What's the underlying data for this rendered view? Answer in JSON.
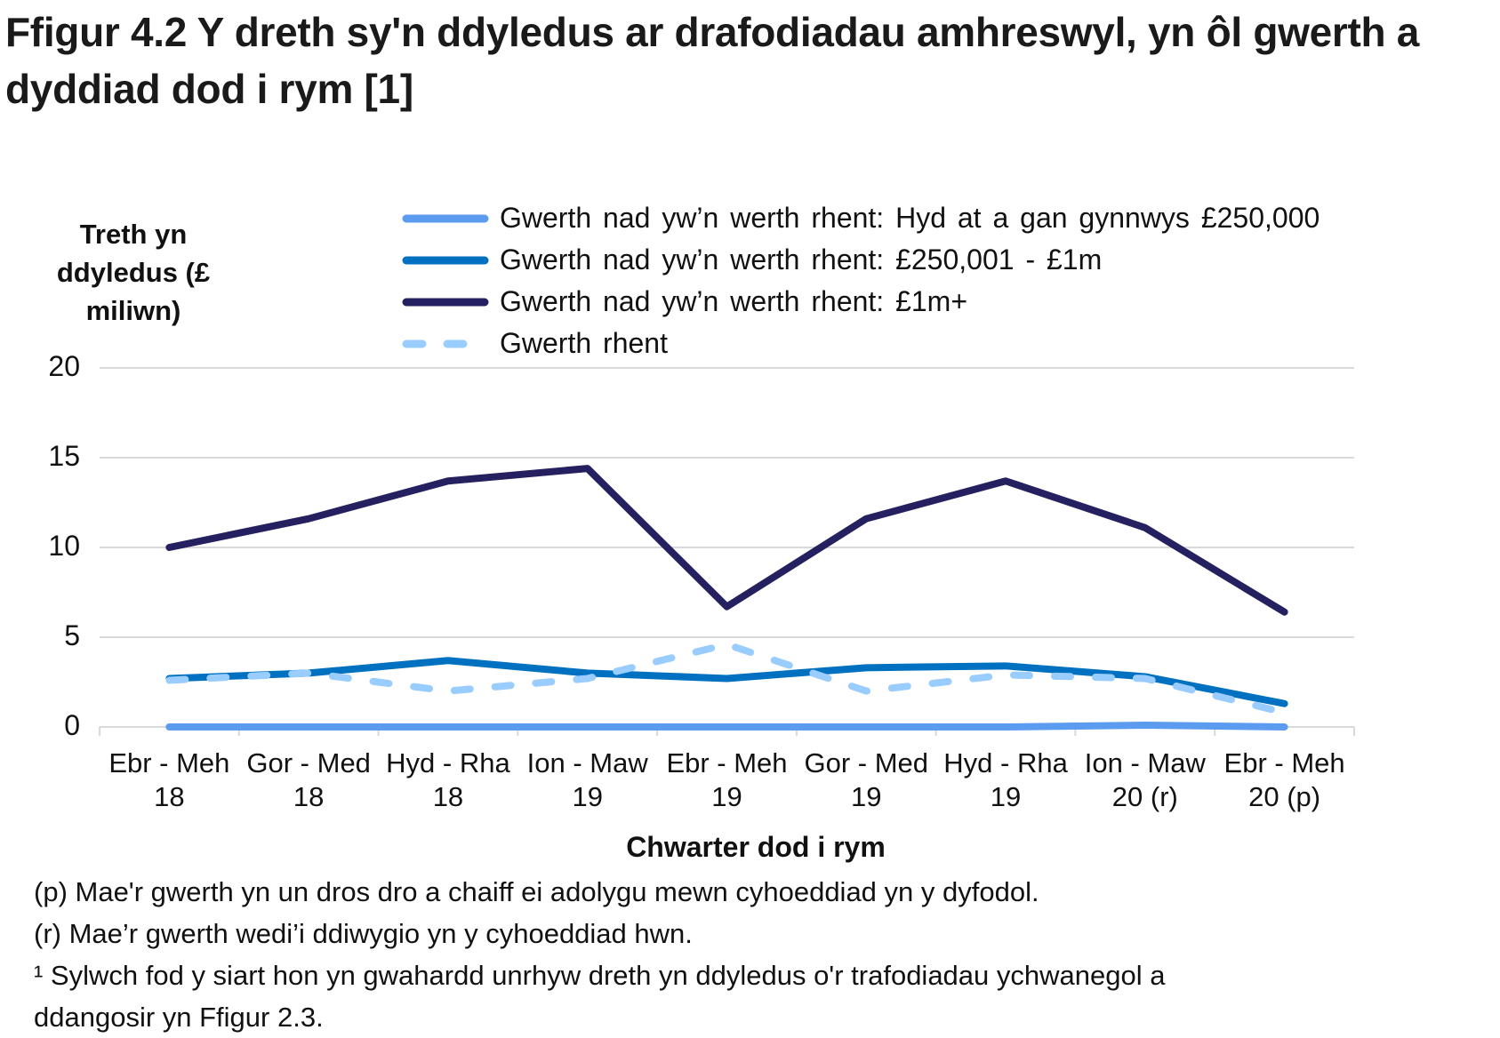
{
  "title": "Ffigur 4.2  Y dreth sy'n ddyledus ar drafodiadau amhreswyl, yn ôl gwerth a dyddiad dod i rym [1]",
  "y_axis_title": "Treth yn ddyledus (£ miliwn)",
  "x_axis_title": "Chwarter dod i rym",
  "y_ticks": [
    "0",
    "5",
    "10",
    "15",
    "20"
  ],
  "x_ticks": [
    {
      "line1": "Ebr - Meh",
      "line2": "18"
    },
    {
      "line1": "Gor - Med",
      "line2": "18"
    },
    {
      "line1": "Hyd - Rha",
      "line2": "18"
    },
    {
      "line1": "Ion - Maw",
      "line2": "19"
    },
    {
      "line1": "Ebr - Meh",
      "line2": "19"
    },
    {
      "line1": "Gor - Med",
      "line2": "19"
    },
    {
      "line1": "Hyd - Rha",
      "line2": "19"
    },
    {
      "line1": "Ion - Maw",
      "line2": "20 (r)"
    },
    {
      "line1": "Ebr - Meh",
      "line2": "20 (p)"
    }
  ],
  "legend": [
    {
      "label": "Gwerth nad yw’n werth rhent: Hyd at a gan gynnwys £250,000",
      "color": "#5b9bf0",
      "dashed": false
    },
    {
      "label": "Gwerth nad yw’n werth rhent: £250,001 - £1m",
      "color": "#0070c0",
      "dashed": false
    },
    {
      "label": "Gwerth nad yw’n werth rhent: £1m+",
      "color": "#252060",
      "dashed": false
    },
    {
      "label": "Gwerth rhent",
      "color": "#99ccff",
      "dashed": true
    }
  ],
  "footnotes": [
    "(p) Mae'r gwerth yn un dros dro a chaiff ei adolygu mewn cyhoeddiad yn y dyfodol.",
    "(r) Mae’r gwerth wedi’i ddiwygio yn y cyhoeddiad hwn.",
    "¹ Sylwch fod y siart hon yn gwahardd  unrhyw dreth yn ddyledus o'r trafodiadau  ychwanegol a",
    "ddangosir yn Ffigur 2.3."
  ],
  "chart_data": {
    "type": "line",
    "title": "Ffigur 4.2  Y dreth sy'n ddyledus ar drafodiadau amhreswyl, yn ôl gwerth a dyddiad dod i rym [1]",
    "xlabel": "Chwarter dod i rym",
    "ylabel": "Treth yn ddyledus (£ miliwn)",
    "ylim": [
      0,
      20
    ],
    "yticks": [
      0,
      5,
      10,
      15,
      20
    ],
    "grid": true,
    "legend_position": "top",
    "categories": [
      "Ebr - Meh 18",
      "Gor - Med 18",
      "Hyd - Rha 18",
      "Ion - Maw 19",
      "Ebr - Meh 19",
      "Gor - Med 19",
      "Hyd - Rha 19",
      "Ion - Maw 20 (r)",
      "Ebr - Meh 20 (p)"
    ],
    "series": [
      {
        "name": "Gwerth nad yw’n werth rhent: Hyd at a gan gynnwys £250,000",
        "color": "#5b9bf0",
        "style": "solid",
        "values": [
          0.0,
          0.0,
          0.0,
          0.0,
          0.0,
          0.0,
          0.0,
          0.1,
          0.0
        ]
      },
      {
        "name": "Gwerth nad yw’n werth rhent: £250,001 - £1m",
        "color": "#0070c0",
        "style": "solid",
        "values": [
          2.7,
          3.0,
          3.7,
          3.0,
          2.7,
          3.3,
          3.4,
          2.8,
          1.3
        ]
      },
      {
        "name": "Gwerth nad yw’n werth rhent: £1m+",
        "color": "#252060",
        "style": "solid",
        "values": [
          10.0,
          11.6,
          13.7,
          14.4,
          6.7,
          11.6,
          13.7,
          11.1,
          6.4
        ]
      },
      {
        "name": "Gwerth rhent",
        "color": "#99ccff",
        "style": "dashed",
        "values": [
          2.6,
          3.0,
          2.0,
          2.7,
          4.6,
          2.0,
          2.9,
          2.7,
          0.8
        ]
      }
    ]
  }
}
